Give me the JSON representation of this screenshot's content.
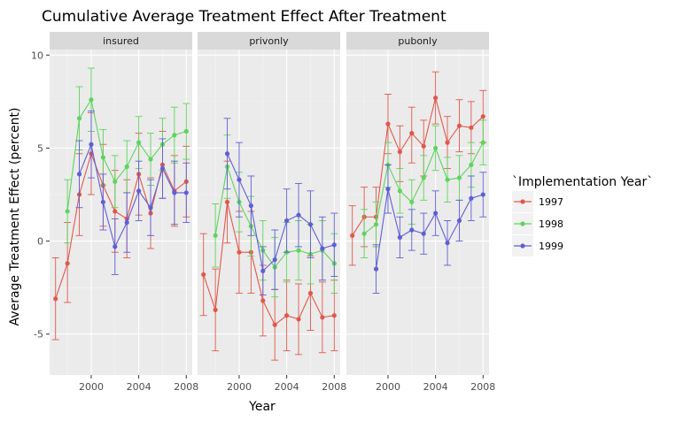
{
  "chart_data": {
    "type": "line",
    "title": "Cumulative Average Treatment Effect After Treatment",
    "xlabel": "Year",
    "ylabel": "Average Treatment Effect (percent)",
    "xlim": [
      1996.5,
      2008.5
    ],
    "ylim": [
      -7.2,
      10.3
    ],
    "x_ticks": [
      2000,
      2004,
      2008
    ],
    "y_ticks": [
      -5,
      0,
      5,
      10
    ],
    "grid": true,
    "legend": {
      "title": "`Implementation Year`",
      "position": "right"
    },
    "facets": [
      "insured",
      "privonly",
      "pubonly"
    ],
    "series": [
      {
        "name": "1997",
        "color": "#E0584B",
        "panels": {
          "insured": {
            "x": [
              1997,
              1998,
              1999,
              2000,
              2001,
              2002,
              2003,
              2004,
              2005,
              2006,
              2007,
              2008
            ],
            "y": [
              -3.1,
              -1.2,
              2.5,
              4.7,
              3.0,
              1.6,
              1.2,
              3.6,
              1.5,
              4.1,
              2.7,
              3.2
            ],
            "lo": [
              -5.3,
              -3.3,
              0.3,
              2.5,
              0.8,
              -0.6,
              -0.9,
              1.4,
              -0.4,
              2.3,
              0.8,
              1.3
            ],
            "hi": [
              -0.9,
              1.0,
              4.7,
              6.9,
              5.2,
              3.8,
              3.3,
              5.8,
              3.4,
              5.9,
              4.6,
              5.1
            ]
          },
          "privonly": {
            "x": [
              1997,
              1998,
              1999,
              2000,
              2001,
              2002,
              2003,
              2004,
              2005,
              2006,
              2007,
              2008
            ],
            "y": [
              -1.8,
              -3.7,
              2.1,
              -0.6,
              -0.6,
              -3.2,
              -4.5,
              -4.0,
              -4.2,
              -2.8,
              -4.1,
              -4.0
            ],
            "lo": [
              -4.0,
              -5.9,
              -0.1,
              -2.8,
              -2.8,
              -5.1,
              -6.4,
              -5.9,
              -6.1,
              -4.8,
              -6.0,
              -5.9
            ],
            "hi": [
              0.4,
              -1.5,
              4.3,
              1.6,
              1.6,
              -1.3,
              -2.6,
              -2.1,
              -2.3,
              -0.8,
              -2.2,
              -2.1
            ]
          },
          "pubonly": {
            "x": [
              1997,
              1998,
              1999,
              2000,
              2001,
              2002,
              2003,
              2004,
              2005,
              2006,
              2007,
              2008
            ],
            "y": [
              0.3,
              1.3,
              1.3,
              6.3,
              4.8,
              5.8,
              5.1,
              7.7,
              5.3,
              6.2,
              6.1,
              6.7
            ],
            "lo": [
              -1.3,
              -0.3,
              -0.3,
              4.7,
              3.2,
              4.2,
              3.5,
              6.3,
              3.9,
              4.8,
              4.7,
              5.3
            ],
            "hi": [
              1.9,
              2.9,
              2.9,
              7.9,
              6.2,
              7.2,
              6.5,
              9.1,
              6.7,
              7.6,
              7.5,
              8.1
            ]
          }
        }
      },
      {
        "name": "1998",
        "color": "#5ED45E",
        "panels": {
          "insured": {
            "x": [
              1998,
              1999,
              2000,
              2001,
              2002,
              2003,
              2004,
              2005,
              2006,
              2007,
              2008
            ],
            "y": [
              1.6,
              6.6,
              7.6,
              4.5,
              3.2,
              4.0,
              5.3,
              4.4,
              5.2,
              5.7,
              5.9
            ],
            "lo": [
              -0.1,
              4.9,
              5.9,
              3.0,
              1.8,
              2.6,
              3.9,
              3.0,
              3.8,
              4.2,
              4.4
            ],
            "hi": [
              3.3,
              8.3,
              9.3,
              6.0,
              4.6,
              5.4,
              6.7,
              5.8,
              6.6,
              7.2,
              7.4
            ]
          },
          "privonly": {
            "x": [
              1998,
              1999,
              2000,
              2001,
              2002,
              2003,
              2004,
              2005,
              2006,
              2007,
              2008
            ],
            "y": [
              0.3,
              4.0,
              2.1,
              0.8,
              -0.5,
              -1.4,
              -0.6,
              -0.5,
              -0.7,
              -0.5,
              -1.2
            ],
            "lo": [
              -1.4,
              2.3,
              0.5,
              -0.8,
              -2.1,
              -3.0,
              -2.2,
              -2.1,
              -2.3,
              -2.1,
              -2.8
            ],
            "hi": [
              2.0,
              5.7,
              3.7,
              2.4,
              1.1,
              0.2,
              1.0,
              1.1,
              0.9,
              1.1,
              0.4
            ]
          },
          "pubonly": {
            "x": [
              1998,
              1999,
              2000,
              2001,
              2002,
              2003,
              2004,
              2005,
              2006,
              2007,
              2008
            ],
            "y": [
              0.4,
              0.9,
              4.1,
              2.7,
              2.1,
              3.4,
              5.0,
              3.3,
              3.4,
              4.1,
              5.3
            ],
            "lo": [
              -0.9,
              -0.3,
              2.9,
              1.5,
              0.9,
              2.2,
              3.8,
              2.1,
              2.2,
              2.9,
              4.1
            ],
            "hi": [
              1.7,
              2.1,
              5.3,
              3.9,
              3.3,
              4.6,
              6.2,
              4.5,
              4.6,
              5.3,
              6.5
            ]
          }
        }
      },
      {
        "name": "1999",
        "color": "#5E5ED6",
        "panels": {
          "insured": {
            "x": [
              1999,
              2000,
              2001,
              2002,
              2003,
              2004,
              2005,
              2006,
              2007,
              2008
            ],
            "y": [
              3.6,
              5.2,
              2.1,
              -0.3,
              1.0,
              2.7,
              1.8,
              3.9,
              2.6,
              2.6
            ],
            "lo": [
              1.8,
              3.4,
              0.6,
              -1.8,
              -0.6,
              1.1,
              0.3,
              2.3,
              0.9,
              1.0
            ],
            "hi": [
              5.4,
              7.0,
              3.6,
              1.2,
              2.6,
              4.3,
              3.3,
              5.5,
              4.3,
              4.2
            ]
          },
          "privonly": {
            "x": [
              1999,
              2000,
              2001,
              2002,
              2003,
              2004,
              2005,
              2006,
              2007,
              2008
            ],
            "y": [
              4.7,
              3.3,
              1.9,
              -1.6,
              -1.0,
              1.1,
              1.4,
              0.9,
              -0.4,
              -0.2
            ],
            "lo": [
              2.8,
              1.3,
              0.3,
              -2.9,
              -2.6,
              -0.6,
              -0.3,
              -0.9,
              -2.1,
              -1.9
            ],
            "hi": [
              6.6,
              5.3,
              3.5,
              -0.3,
              0.6,
              2.8,
              3.1,
              2.7,
              1.3,
              1.5
            ]
          },
          "pubonly": {
            "x": [
              1999,
              2000,
              2001,
              2002,
              2003,
              2004,
              2005,
              2006,
              2007,
              2008
            ],
            "y": [
              -1.5,
              2.8,
              0.2,
              0.6,
              0.4,
              1.5,
              -0.1,
              1.1,
              2.3,
              2.5
            ],
            "lo": [
              -2.8,
              1.5,
              -0.9,
              -0.5,
              -0.7,
              0.3,
              -1.3,
              0.0,
              1.1,
              1.3
            ],
            "hi": [
              -0.2,
              4.1,
              1.3,
              1.7,
              1.5,
              2.7,
              1.1,
              2.2,
              3.5,
              3.7
            ]
          }
        }
      }
    ]
  }
}
